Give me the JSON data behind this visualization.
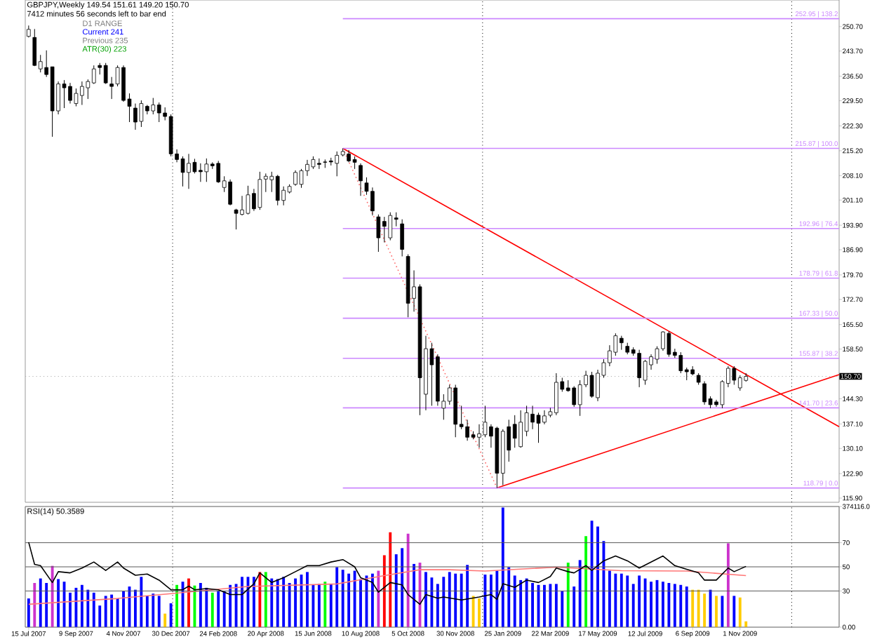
{
  "chart_data": [
    {
      "type": "candlestick",
      "title": "GBPJPY,Weekly  149.54 151.61 149.20 150.70",
      "subtitle": "7412 minutes 56 seconds left to bar end",
      "annotations": [
        "D1 RANGE",
        "Current 241",
        "Previous 235",
        "ATR(30) 223"
      ],
      "x": [
        "2007-07-15",
        "2007-07-22",
        "2007-07-29",
        "2007-08-05",
        "2007-08-12",
        "2007-08-19",
        "2007-08-26",
        "2007-09-02",
        "2007-09-09",
        "2007-09-16",
        "2007-09-23",
        "2007-09-30",
        "2007-10-07",
        "2007-10-14",
        "2007-10-21",
        "2007-10-28",
        "2007-11-04",
        "2007-11-11",
        "2007-11-18",
        "2007-11-25",
        "2007-12-02",
        "2007-12-09",
        "2007-12-16",
        "2007-12-23",
        "2007-12-30",
        "2008-01-06",
        "2008-01-13",
        "2008-01-20",
        "2008-01-27",
        "2008-02-03",
        "2008-02-10",
        "2008-02-17",
        "2008-02-24",
        "2008-03-02",
        "2008-03-09",
        "2008-03-16",
        "2008-03-23",
        "2008-03-30",
        "2008-04-06",
        "2008-04-13",
        "2008-04-20",
        "2008-04-27",
        "2008-05-04",
        "2008-05-11",
        "2008-05-18",
        "2008-05-25",
        "2008-06-01",
        "2008-06-08",
        "2008-06-15",
        "2008-06-22",
        "2008-06-29",
        "2008-07-06",
        "2008-07-13",
        "2008-07-20",
        "2008-07-27",
        "2008-08-03",
        "2008-08-10",
        "2008-08-17",
        "2008-08-24",
        "2008-08-31",
        "2008-09-07",
        "2008-09-14",
        "2008-09-21",
        "2008-09-28",
        "2008-10-05",
        "2008-10-12",
        "2008-10-19",
        "2008-10-26",
        "2008-11-02",
        "2008-11-09",
        "2008-11-16",
        "2008-11-23",
        "2008-11-30",
        "2008-12-07",
        "2008-12-14",
        "2008-12-21",
        "2008-12-28",
        "2009-01-04",
        "2009-01-11",
        "2009-01-18",
        "2009-01-25",
        "2009-02-01",
        "2009-02-08",
        "2009-02-15",
        "2009-02-22",
        "2009-03-01",
        "2009-03-08",
        "2009-03-15",
        "2009-03-22",
        "2009-03-29",
        "2009-04-05",
        "2009-04-12",
        "2009-04-19",
        "2009-04-26",
        "2009-05-03",
        "2009-05-10",
        "2009-05-17",
        "2009-05-24",
        "2009-05-31",
        "2009-06-07",
        "2009-06-14",
        "2009-06-21",
        "2009-06-28",
        "2009-07-05",
        "2009-07-12",
        "2009-07-19",
        "2009-07-26",
        "2009-08-02",
        "2009-08-09",
        "2009-08-16",
        "2009-08-23",
        "2009-08-30",
        "2009-09-06",
        "2009-09-13",
        "2009-09-20",
        "2009-09-27",
        "2009-10-04",
        "2009-10-11",
        "2009-10-18",
        "2009-10-25",
        "2009-11-01",
        "2009-11-08"
      ],
      "ohlc": [
        [
          247.9,
          251.0,
          247.6,
          249.9
        ],
        [
          247.6,
          250.0,
          239.4,
          239.6
        ],
        [
          238.6,
          242.6,
          237.6,
          240.7
        ],
        [
          239.0,
          243.9,
          236.3,
          237.0
        ],
        [
          239.2,
          239.2,
          219.2,
          226.6
        ],
        [
          226.6,
          235.0,
          225.6,
          234.3
        ],
        [
          234.3,
          235.4,
          227.4,
          233.2
        ],
        [
          233.6,
          234.6,
          228.7,
          229.6
        ],
        [
          228.7,
          233.0,
          227.9,
          231.6
        ],
        [
          231.0,
          235.0,
          228.3,
          233.6
        ],
        [
          233.2,
          235.6,
          230.0,
          235.0
        ],
        [
          234.6,
          239.6,
          234.3,
          238.6
        ],
        [
          239.6,
          240.3,
          237.0,
          239.0
        ],
        [
          239.6,
          240.3,
          234.3,
          234.6
        ],
        [
          234.3,
          236.3,
          230.0,
          233.6
        ],
        [
          234.3,
          239.6,
          233.6,
          239.0
        ],
        [
          239.0,
          239.6,
          229.2,
          229.6
        ],
        [
          230.0,
          231.6,
          223.4,
          227.9
        ],
        [
          227.4,
          228.7,
          221.2,
          223.4
        ],
        [
          223.6,
          229.6,
          222.0,
          228.7
        ],
        [
          227.9,
          228.3,
          225.6,
          226.6
        ],
        [
          226.6,
          230.3,
          225.6,
          228.3
        ],
        [
          228.3,
          229.0,
          223.4,
          226.0
        ],
        [
          226.0,
          227.6,
          223.9,
          225.0
        ],
        [
          225.0,
          225.6,
          213.6,
          214.3
        ],
        [
          214.3,
          215.6,
          211.9,
          212.7
        ],
        [
          212.9,
          213.6,
          205.0,
          209.0
        ],
        [
          209.0,
          214.3,
          204.3,
          211.6
        ],
        [
          211.9,
          212.9,
          208.7,
          209.2
        ],
        [
          209.6,
          211.6,
          206.3,
          209.2
        ],
        [
          209.2,
          213.0,
          206.3,
          211.4
        ],
        [
          211.4,
          211.9,
          210.0,
          210.9
        ],
        [
          211.6,
          212.3,
          206.0,
          206.3
        ],
        [
          204.7,
          207.9,
          203.4,
          206.6
        ],
        [
          206.3,
          207.0,
          199.6,
          199.9
        ],
        [
          198.3,
          198.6,
          192.7,
          197.3
        ],
        [
          197.0,
          202.3,
          196.7,
          198.3
        ],
        [
          197.3,
          205.2,
          197.0,
          202.6
        ],
        [
          203.0,
          204.3,
          198.0,
          198.6
        ],
        [
          199.0,
          209.2,
          198.3,
          207.0
        ],
        [
          207.1,
          208.7,
          203.4,
          207.9
        ],
        [
          206.9,
          209.2,
          203.4,
          207.9
        ],
        [
          207.9,
          208.3,
          199.6,
          201.0
        ],
        [
          201.0,
          205.0,
          199.6,
          203.9
        ],
        [
          203.4,
          205.6,
          203.0,
          205.0
        ],
        [
          205.6,
          209.6,
          205.2,
          209.0
        ],
        [
          205.6,
          210.0,
          204.6,
          209.5
        ],
        [
          209.5,
          212.6,
          208.0,
          211.3
        ],
        [
          210.6,
          213.6,
          210.0,
          212.7
        ],
        [
          211.6,
          213.0,
          210.0,
          211.3
        ],
        [
          212.0,
          212.7,
          210.3,
          211.9
        ],
        [
          212.3,
          213.2,
          211.0,
          212.0
        ],
        [
          211.6,
          215.0,
          207.9,
          213.9
        ],
        [
          214.0,
          215.87,
          213.6,
          215.0
        ],
        [
          214.3,
          215.4,
          211.9,
          212.3
        ],
        [
          212.7,
          213.6,
          210.0,
          211.9
        ],
        [
          211.0,
          211.6,
          202.3,
          206.6
        ],
        [
          206.0,
          207.6,
          202.6,
          203.6
        ],
        [
          203.6,
          204.7,
          196.7,
          198.0
        ],
        [
          196.3,
          197.0,
          186.3,
          190.3
        ],
        [
          195.0,
          196.3,
          189.0,
          193.6
        ],
        [
          190.3,
          197.6,
          189.6,
          196.7
        ],
        [
          196.0,
          197.6,
          193.6,
          195.6
        ],
        [
          194.3,
          195.6,
          185.0,
          187.0
        ],
        [
          185.0,
          185.6,
          167.6,
          171.6
        ],
        [
          173.0,
          181.0,
          169.2,
          176.3
        ],
        [
          176.3,
          177.0,
          139.6,
          150.3
        ],
        [
          145.6,
          162.3,
          141.0,
          158.6
        ],
        [
          158.6,
          160.3,
          142.3,
          154.0
        ],
        [
          156.3,
          157.0,
          142.3,
          143.6
        ],
        [
          141.6,
          145.6,
          138.3,
          143.6
        ],
        [
          143.6,
          148.3,
          142.6,
          147.4
        ],
        [
          147.4,
          148.3,
          133.3,
          137.0
        ],
        [
          137.0,
          142.3,
          135.6,
          136.3
        ],
        [
          136.3,
          138.3,
          132.3,
          133.3
        ],
        [
          134.0,
          135.0,
          132.7,
          133.3
        ],
        [
          133.3,
          137.0,
          130.3,
          134.3
        ],
        [
          134.0,
          142.3,
          133.3,
          137.6
        ],
        [
          136.3,
          137.0,
          130.3,
          133.6
        ],
        [
          135.9,
          136.3,
          118.79,
          123.0
        ],
        [
          123.0,
          135.6,
          119.6,
          135.0
        ],
        [
          136.3,
          138.3,
          126.3,
          129.6
        ],
        [
          137.0,
          139.6,
          130.3,
          133.0
        ],
        [
          130.6,
          141.0,
          130.3,
          137.6
        ],
        [
          135.0,
          142.3,
          133.6,
          140.3
        ],
        [
          139.9,
          142.3,
          135.6,
          137.6
        ],
        [
          139.6,
          140.3,
          131.7,
          137.3
        ],
        [
          137.6,
          141.0,
          137.0,
          139.4
        ],
        [
          139.6,
          141.7,
          139.0,
          140.6
        ],
        [
          140.3,
          151.6,
          139.6,
          149.0
        ],
        [
          149.2,
          150.3,
          146.3,
          147.0
        ],
        [
          147.4,
          149.6,
          146.3,
          146.6
        ],
        [
          147.4,
          147.9,
          142.0,
          142.6
        ],
        [
          142.6,
          149.6,
          139.4,
          148.3
        ],
        [
          148.3,
          152.3,
          147.6,
          151.0
        ],
        [
          151.0,
          152.0,
          144.6,
          145.0
        ],
        [
          144.6,
          152.6,
          143.6,
          151.6
        ],
        [
          151.0,
          155.6,
          150.3,
          154.6
        ],
        [
          154.6,
          159.6,
          153.6,
          158.0
        ],
        [
          157.6,
          163.0,
          156.6,
          162.3
        ],
        [
          161.6,
          162.3,
          158.3,
          160.3
        ],
        [
          159.3,
          160.3,
          157.0,
          157.6
        ],
        [
          158.3,
          159.0,
          156.6,
          157.3
        ],
        [
          157.3,
          158.3,
          147.6,
          150.3
        ],
        [
          149.6,
          155.4,
          148.3,
          155.0
        ],
        [
          154.0,
          157.0,
          152.6,
          156.3
        ],
        [
          155.6,
          159.3,
          154.3,
          158.6
        ],
        [
          158.6,
          163.6,
          158.0,
          163.4
        ],
        [
          163.0,
          163.6,
          156.3,
          157.0
        ],
        [
          157.6,
          158.6,
          156.0,
          156.7
        ],
        [
          156.7,
          157.6,
          151.6,
          152.3
        ],
        [
          152.6,
          153.2,
          149.6,
          152.0
        ],
        [
          152.6,
          153.6,
          151.0,
          151.4
        ],
        [
          151.0,
          151.6,
          148.3,
          149.0
        ],
        [
          148.6,
          149.3,
          142.6,
          143.4
        ],
        [
          144.3,
          145.0,
          141.6,
          142.6
        ],
        [
          143.4,
          144.0,
          142.0,
          142.6
        ],
        [
          142.6,
          149.6,
          141.6,
          149.2
        ],
        [
          148.7,
          153.6,
          147.6,
          153.0
        ],
        [
          153.0,
          153.6,
          148.3,
          149.6
        ],
        [
          147.4,
          151.0,
          146.6,
          150.3
        ],
        [
          149.54,
          151.61,
          149.2,
          150.7
        ]
      ],
      "series": [
        {
          "type": "line",
          "color": "#ff0000",
          "x": [
            "2008-07-20",
            "2010-02-26"
          ],
          "values": [
            215.87,
            136.3
          ]
        },
        {
          "type": "line",
          "color": "#ff0000",
          "x": [
            "2009-01-18",
            "2010-02-26"
          ],
          "values": [
            118.79,
            151.2
          ]
        },
        {
          "type": "line",
          "color": "#ff6666",
          "line_style": "dotted",
          "x": [
            "2008-07-20",
            "2009-01-18"
          ],
          "values": [
            215.87,
            118.79
          ]
        },
        {
          "type": "line",
          "name": "252.95 | 138.2",
          "color": "#cc88ff",
          "x": [
            "2008-07-20",
            "2010-02-26"
          ],
          "values": [
            252.95,
            252.95
          ]
        },
        {
          "type": "line",
          "name": "215.87 | 100.0",
          "color": "#cc88ff",
          "x": [
            "2008-07-20",
            "2010-02-26"
          ],
          "values": [
            215.87,
            215.87
          ]
        },
        {
          "type": "line",
          "name": "192.96 | 76.4",
          "color": "#cc88ff",
          "x": [
            "2008-07-20",
            "2010-02-26"
          ],
          "values": [
            192.96,
            192.96
          ]
        },
        {
          "type": "line",
          "name": "178.79 | 61.8",
          "color": "#cc88ff",
          "x": [
            "2008-07-20",
            "2010-02-26"
          ],
          "values": [
            178.79,
            178.79
          ]
        },
        {
          "type": "line",
          "name": "167.33 | 50.0",
          "color": "#cc88ff",
          "x": [
            "2008-07-20",
            "2010-02-26"
          ],
          "values": [
            167.33,
            167.33
          ]
        },
        {
          "type": "line",
          "name": "155.87 | 38.2",
          "color": "#cc88ff",
          "x": [
            "2008-07-20",
            "2010-02-26"
          ],
          "values": [
            155.87,
            155.87
          ]
        },
        {
          "type": "line",
          "name": "141.70 | 23.6",
          "color": "#cc88ff",
          "x": [
            "2008-07-20",
            "2010-02-26"
          ],
          "values": [
            141.7,
            141.7
          ]
        },
        {
          "type": "line",
          "name": "118.79 | 0.0",
          "color": "#cc88ff",
          "x": [
            "2008-07-20",
            "2010-02-26"
          ],
          "values": [
            118.79,
            118.79
          ]
        }
      ],
      "ref_lines": [
        {
          "axis": "y",
          "value": 150.7,
          "label": "150.70",
          "color": "#b0b0b0",
          "line_style": "dotted"
        },
        {
          "axis": "x",
          "value": "2008-01-01",
          "color": "#000000",
          "line_style": "dotted"
        },
        {
          "axis": "x",
          "value": "2009-01-01",
          "color": "#000000",
          "line_style": "dotted"
        },
        {
          "axis": "x",
          "value": "2010-01-01",
          "color": "#000000",
          "line_style": "dotted"
        }
      ],
      "xlim": [
        "2007-07-11",
        "2010-02-26"
      ],
      "ylim": [
        114.7,
        258.3
      ],
      "yticks": [
        {
          "value": 250.7,
          "label": "250.70"
        },
        {
          "value": 243.7,
          "label": "243.70"
        },
        {
          "value": 236.5,
          "label": "236.50"
        },
        {
          "value": 229.5,
          "label": "229.50"
        },
        {
          "value": 222.3,
          "label": "222.30"
        },
        {
          "value": 215.2,
          "label": "215.20"
        },
        {
          "value": 208.1,
          "label": "208.10"
        },
        {
          "value": 201.1,
          "label": "201.10"
        },
        {
          "value": 193.9,
          "label": "193.90"
        },
        {
          "value": 186.9,
          "label": "186.90"
        },
        {
          "value": 179.7,
          "label": "179.70"
        },
        {
          "value": 172.7,
          "label": "172.70"
        },
        {
          "value": 165.5,
          "label": "165.50"
        },
        {
          "value": 158.5,
          "label": "158.50"
        },
        {
          "value": 144.3,
          "label": "144.30"
        },
        {
          "value": 137.1,
          "label": "137.10"
        },
        {
          "value": 130.1,
          "label": "130.10"
        },
        {
          "value": 122.9,
          "label": "122.90"
        },
        {
          "value": 115.9,
          "label": "115.90"
        }
      ],
      "tick_labels": "y"
    },
    {
      "type": "bar",
      "title": "RSI(14) 50.3589",
      "x": [
        "2007-07-15",
        "2007-07-22",
        "2007-07-29",
        "2007-08-05",
        "2007-08-12",
        "2007-08-19",
        "2007-08-26",
        "2007-09-02",
        "2007-09-09",
        "2007-09-16",
        "2007-09-23",
        "2007-09-30",
        "2007-10-07",
        "2007-10-14",
        "2007-10-21",
        "2007-10-28",
        "2007-11-04",
        "2007-11-11",
        "2007-11-18",
        "2007-11-25",
        "2007-12-02",
        "2007-12-09",
        "2007-12-16",
        "2007-12-23",
        "2007-12-30",
        "2008-01-06",
        "2008-01-13",
        "2008-01-20",
        "2008-01-27",
        "2008-02-03",
        "2008-02-10",
        "2008-02-17",
        "2008-02-24",
        "2008-03-02",
        "2008-03-09",
        "2008-03-16",
        "2008-03-23",
        "2008-03-30",
        "2008-04-06",
        "2008-04-13",
        "2008-04-20",
        "2008-04-27",
        "2008-05-04",
        "2008-05-11",
        "2008-05-18",
        "2008-05-25",
        "2008-06-01",
        "2008-06-08",
        "2008-06-15",
        "2008-06-22",
        "2008-06-29",
        "2008-07-06",
        "2008-07-13",
        "2008-07-20",
        "2008-07-27",
        "2008-08-03",
        "2008-08-10",
        "2008-08-17",
        "2008-08-24",
        "2008-08-31",
        "2008-09-07",
        "2008-09-14",
        "2008-09-21",
        "2008-09-28",
        "2008-10-05",
        "2008-10-12",
        "2008-10-19",
        "2008-10-26",
        "2008-11-02",
        "2008-11-09",
        "2008-11-16",
        "2008-11-23",
        "2008-11-30",
        "2008-12-07",
        "2008-12-14",
        "2008-12-21",
        "2008-12-28",
        "2009-01-04",
        "2009-01-11",
        "2009-01-18",
        "2009-01-25",
        "2009-02-01",
        "2009-02-08",
        "2009-02-15",
        "2009-02-22",
        "2009-03-01",
        "2009-03-08",
        "2009-03-15",
        "2009-03-22",
        "2009-03-29",
        "2009-04-05",
        "2009-04-12",
        "2009-04-19",
        "2009-04-26",
        "2009-05-03",
        "2009-05-10",
        "2009-05-17",
        "2009-05-24",
        "2009-05-31",
        "2009-06-07",
        "2009-06-14",
        "2009-06-21",
        "2009-06-28",
        "2009-07-05",
        "2009-07-12",
        "2009-07-19",
        "2009-07-26",
        "2009-08-02",
        "2009-08-09",
        "2009-08-16",
        "2009-08-23",
        "2009-08-30",
        "2009-09-06",
        "2009-09-13",
        "2009-09-20",
        "2009-09-27",
        "2009-10-04",
        "2009-10-11",
        "2009-10-18",
        "2009-10-25",
        "2009-11-01",
        "2009-11-08"
      ],
      "series": [
        {
          "type": "bar",
          "axis": "y2",
          "values": [
            89000,
            137000,
            151000,
            137000,
            190000,
            149000,
            141000,
            107000,
            122000,
            131000,
            116000,
            107000,
            67000,
            97000,
            101000,
            89000,
            111000,
            126000,
            116000,
            156000,
            97000,
            104000,
            97000,
            42000,
            74000,
            131000,
            141000,
            151000,
            129000,
            137000,
            122000,
            107000,
            111000,
            111000,
            131000,
            134000,
            156000,
            156000,
            156000,
            171000,
            171000,
            151000,
            149000,
            156000,
            137000,
            151000,
            163000,
            171000,
            131000,
            134000,
            141000,
            134000,
            186000,
            178000,
            166000,
            175000,
            149000,
            160000,
            166000,
            175000,
            223000,
            294000,
            226000,
            245000,
            290000,
            196000,
            200000,
            171000,
            154000,
            134000,
            156000,
            171000,
            166000,
            166000,
            193000,
            97000,
            89000,
            163000,
            163000,
            175000,
            371000,
            186000,
            160000,
            146000,
            151000,
            137000,
            131000,
            131000,
            134000,
            134000,
            111000,
            200000,
            126000,
            208000,
            282000,
            330000,
            312000,
            267000,
            175000,
            166000,
            166000,
            160000,
            134000,
            160000,
            151000,
            141000,
            146000,
            141000,
            137000,
            134000,
            131000,
            126000,
            116000,
            116000,
            104000,
            116000,
            97000,
            97000,
            260000,
            97000,
            92000,
            18000
          ],
          "colors": [
            "#0000ff",
            "#cc33cc",
            "#0000ff",
            "#0000ff",
            "#cc33cc",
            "#0000ff",
            "#0000ff",
            "#0000ff",
            "#0000ff",
            "#0000ff",
            "#0000ff",
            "#0000ff",
            "#0000ff",
            "#0000ff",
            "#0000ff",
            "#0000ff",
            "#0000ff",
            "#0000ff",
            "#0000ff",
            "#0000ff",
            "#0000ff",
            "#0000ff",
            "#0000ff",
            "#ffcc00",
            "#0000ff",
            "#00ff00",
            "#0000ff",
            "#ff0000",
            "#00ff00",
            "#0000ff",
            "#0000ff",
            "#00ff00",
            "#0000ff",
            "#0000ff",
            "#0000ff",
            "#0000ff",
            "#0000ff",
            "#0000ff",
            "#0000ff",
            "#ff0000",
            "#00ff00",
            "#0000ff",
            "#0000ff",
            "#0000ff",
            "#0000ff",
            "#0000ff",
            "#0000ff",
            "#0000ff",
            "#0000ff",
            "#0000ff",
            "#00ff00",
            "#0000ff",
            "#0000ff",
            "#0000ff",
            "#0000ff",
            "#0000ff",
            "#0000ff",
            "#0000ff",
            "#0000ff",
            "#cc33cc",
            "#ff0000",
            "#ff0000",
            "#0000ff",
            "#0000ff",
            "#cc33cc",
            "#0000ff",
            "#cc33cc",
            "#0000ff",
            "#0000ff",
            "#0000ff",
            "#0000ff",
            "#0000ff",
            "#0000ff",
            "#0000ff",
            "#0000ff",
            "#ffcc00",
            "#ffcc00",
            "#0000ff",
            "#0000ff",
            "#0000ff",
            "#0000ff",
            "#0000ff",
            "#0000ff",
            "#0000ff",
            "#0000ff",
            "#0000ff",
            "#0000ff",
            "#0000ff",
            "#0000ff",
            "#0000ff",
            "#0000ff",
            "#00ff00",
            "#0000ff",
            "#0000ff",
            "#00ff00",
            "#0000ff",
            "#0000ff",
            "#0000ff",
            "#0000ff",
            "#0000ff",
            "#0000ff",
            "#0000ff",
            "#0000ff",
            "#0000ff",
            "#0000ff",
            "#0000ff",
            "#0000ff",
            "#0000ff",
            "#0000ff",
            "#0000ff",
            "#0000ff",
            "#0000ff",
            "#ffcc00",
            "#ffcc00",
            "#ffcc00",
            "#0000ff",
            "#ffcc00",
            "#0000ff",
            "#cc33cc",
            "#0000ff",
            "#ffcc00",
            "#ffcc00"
          ]
        },
        {
          "type": "line",
          "axis": "y2",
          "color": "#ff7777",
          "x": [
            "2007-07-15",
            "2007-10-28",
            "2007-12-30",
            "2008-03-30",
            "2008-07-13",
            "2008-09-07",
            "2008-10-19",
            "2008-11-23",
            "2009-01-04",
            "2009-03-29",
            "2009-06-14",
            "2009-08-30",
            "2009-11-08"
          ],
          "values": [
            71000,
            89000,
            104000,
            126000,
            134000,
            160000,
            178000,
            178000,
            174000,
            186000,
            175000,
            174000,
            160000
          ]
        },
        {
          "type": "line",
          "color": "#000000",
          "x": [
            "2007-07-15",
            "2007-07-22",
            "2007-07-29",
            "2007-08-12",
            "2007-08-19",
            "2007-09-02",
            "2007-09-16",
            "2007-09-30",
            "2007-10-14",
            "2007-10-28",
            "2007-11-04",
            "2007-11-18",
            "2007-12-02",
            "2007-12-16",
            "2007-12-30",
            "2008-01-13",
            "2008-01-20",
            "2008-01-27",
            "2008-02-10",
            "2008-02-24",
            "2008-03-09",
            "2008-03-23",
            "2008-04-06",
            "2008-04-13",
            "2008-04-27",
            "2008-05-11",
            "2008-05-25",
            "2008-06-08",
            "2008-06-22",
            "2008-07-06",
            "2008-07-20",
            "2008-08-03",
            "2008-08-10",
            "2008-08-24",
            "2008-08-31",
            "2008-09-14",
            "2008-09-28",
            "2008-10-05",
            "2008-10-19",
            "2008-10-26",
            "2008-11-09",
            "2008-11-16",
            "2008-12-07",
            "2008-12-28",
            "2009-01-11",
            "2009-01-18",
            "2009-01-25",
            "2009-02-08",
            "2009-02-22",
            "2009-03-08",
            "2009-03-22",
            "2009-03-29",
            "2009-04-12",
            "2009-04-19",
            "2009-05-03",
            "2009-05-10",
            "2009-05-24",
            "2009-06-07",
            "2009-06-21",
            "2009-07-05",
            "2009-07-19",
            "2009-08-02",
            "2009-08-16",
            "2009-08-30",
            "2009-09-13",
            "2009-09-20",
            "2009-10-04",
            "2009-10-18",
            "2009-10-25",
            "2009-11-08"
          ],
          "values": [
            70.4,
            52,
            51,
            37,
            46,
            45,
            49,
            54,
            47,
            54,
            49,
            43,
            44,
            39,
            31,
            31,
            34,
            31,
            32,
            31,
            27,
            27,
            36,
            45,
            37,
            41,
            46,
            51,
            51,
            54,
            56,
            50,
            41,
            37,
            29,
            37,
            35,
            27,
            19,
            27,
            24,
            25,
            22.5,
            25,
            27,
            23,
            36,
            33,
            39,
            37,
            42,
            49,
            46,
            45,
            51,
            47,
            55,
            59,
            55,
            49,
            54,
            59,
            51,
            48,
            45,
            39,
            39,
            49,
            46,
            50.36
          ]
        }
      ],
      "ref_lines": [
        {
          "axis": "x",
          "value": "2008-01-01",
          "color": "#000000",
          "line_style": "dotted"
        },
        {
          "axis": "x",
          "value": "2009-01-01",
          "color": "#000000",
          "line_style": "dotted"
        },
        {
          "axis": "x",
          "value": "2010-01-01",
          "color": "#000000",
          "line_style": "dotted"
        }
      ],
      "xlim": [
        "2007-07-11",
        "2010-02-26"
      ],
      "xticks": [
        {
          "value": "2007-07-15",
          "label": "15 Jul 2007"
        },
        {
          "value": "2007-09-09",
          "label": "9 Sep 2007"
        },
        {
          "value": "2007-11-04",
          "label": "4 Nov 2007"
        },
        {
          "value": "2007-12-30",
          "label": "30 Dec 2007"
        },
        {
          "value": "2008-02-24",
          "label": "24 Feb 2008"
        },
        {
          "value": "2008-04-20",
          "label": "20 Apr 2008"
        },
        {
          "value": "2008-06-15",
          "label": "15 Jun 2008"
        },
        {
          "value": "2008-08-10",
          "label": "10 Aug 2008"
        },
        {
          "value": "2008-10-05",
          "label": "5 Oct 2008"
        },
        {
          "value": "2008-11-30",
          "label": "30 Nov 2008"
        },
        {
          "value": "2009-01-25",
          "label": "25 Jan 2009"
        },
        {
          "value": "2009-03-22",
          "label": "22 Mar 2009"
        },
        {
          "value": "2009-05-17",
          "label": "17 May 2009"
        },
        {
          "value": "2009-07-12",
          "label": "12 Jul 2009"
        },
        {
          "value": "2009-09-06",
          "label": "6 Sep 2009"
        },
        {
          "value": "2009-11-01",
          "label": "1 Nov 2009"
        }
      ],
      "ylim": [
        0,
        100
      ],
      "yticks": [
        30,
        50,
        70
      ],
      "y2lim": [
        0,
        374116
      ],
      "y2ticks": [
        {
          "value": 0,
          "label": "0.00"
        },
        {
          "value": 374116,
          "label": "374116.0"
        }
      ],
      "grid": "y"
    }
  ]
}
